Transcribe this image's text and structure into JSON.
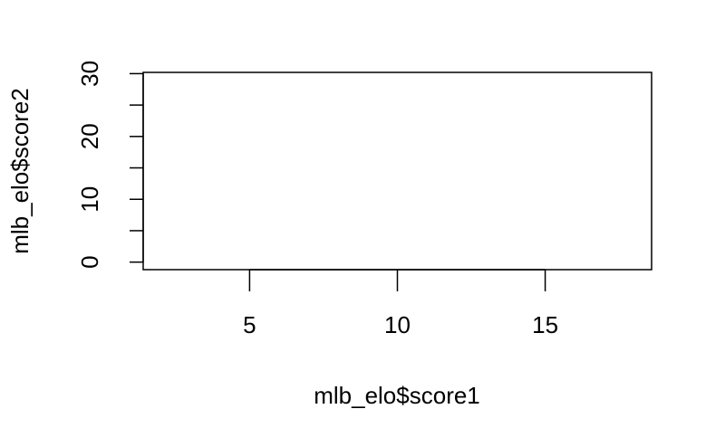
{
  "chart_data": {
    "type": "scatter",
    "title": "",
    "xlabel": "mlb_elo$score1",
    "ylabel": "mlb_elo$score2",
    "xlim": [
      1.4,
      18.6
    ],
    "ylim": [
      -1.2,
      30.2
    ],
    "x_ticks": [
      5,
      10,
      15
    ],
    "x_tick_labels": [
      "5",
      "10",
      "15"
    ],
    "y_ticks": [
      0,
      5,
      10,
      15,
      20,
      25,
      30
    ],
    "y_tick_labels": [
      "0",
      "",
      "10",
      "",
      "20",
      "",
      "30"
    ],
    "points": [],
    "grid": false,
    "legend": "none"
  }
}
